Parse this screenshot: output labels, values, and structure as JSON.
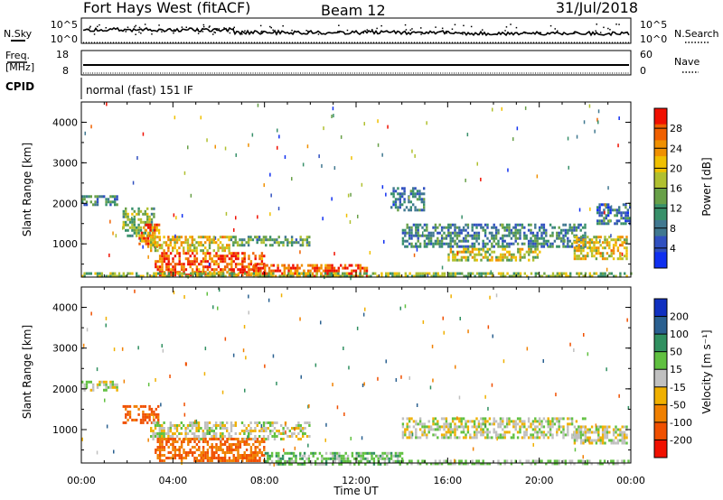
{
  "header": {
    "station": "Fort Hays West (fitACF)",
    "beam": "Beam 12",
    "date": "31/Jul/2018"
  },
  "noise_panel": {
    "left_label": "N.Sky",
    "right_label": "N.Search",
    "left_ticks": [
      "10^5",
      "10^0"
    ],
    "right_ticks": [
      "10^5",
      "10^0"
    ]
  },
  "freq_panel": {
    "left_label_line1": "Freq.",
    "left_label_line2": "[MHz]",
    "right_label": "Nave",
    "left_ticks": [
      "18",
      "8"
    ],
    "right_ticks": [
      "60",
      "0"
    ]
  },
  "cpid": {
    "label": "CPID",
    "mode_text": "normal (fast) 151 IF"
  },
  "chart_data": [
    {
      "type": "heatmap",
      "quantity": "power",
      "ylabel": "Slant Range [km]",
      "ylim": [
        180,
        4500
      ],
      "yticks": [
        1000,
        2000,
        3000,
        4000
      ],
      "xlim_hours": [
        0,
        24
      ],
      "colorbar": {
        "label": "Power [dB]",
        "range": [
          0,
          32
        ],
        "ticks": [
          4,
          8,
          12,
          16,
          20,
          24,
          28
        ],
        "colors": [
          "#1030f0",
          "#3050c0",
          "#407890",
          "#38906a",
          "#68a048",
          "#b0c030",
          "#f0c000",
          "#f09000",
          "#f06000",
          "#f01000"
        ]
      },
      "echo_regions": [
        {
          "t": [
            0.0,
            1.6
          ],
          "range": [
            1950,
            2200
          ],
          "level": 10
        },
        {
          "t": [
            1.8,
            3.2
          ],
          "range": [
            1200,
            1900
          ],
          "level": 14
        },
        {
          "t": [
            2.5,
            3.4
          ],
          "range": [
            900,
            1500
          ],
          "level": 26
        },
        {
          "t": [
            3.0,
            6.5
          ],
          "range": [
            800,
            1200
          ],
          "level": 20
        },
        {
          "t": [
            3.2,
            8.0
          ],
          "range": [
            250,
            800
          ],
          "level": 28
        },
        {
          "t": [
            6.5,
            10.0
          ],
          "range": [
            950,
            1200
          ],
          "level": 12
        },
        {
          "t": [
            7.5,
            12.5
          ],
          "range": [
            180,
            500
          ],
          "level": 28
        },
        {
          "t": [
            0.0,
            24.0
          ],
          "range": [
            180,
            300
          ],
          "level": 16
        },
        {
          "t": [
            13.5,
            15.0
          ],
          "range": [
            1800,
            2400
          ],
          "level": 8
        },
        {
          "t": [
            14.0,
            22.0
          ],
          "range": [
            900,
            1500
          ],
          "level": 10
        },
        {
          "t": [
            16.0,
            20.0
          ],
          "range": [
            600,
            900
          ],
          "level": 18
        },
        {
          "t": [
            21.5,
            23.8
          ],
          "range": [
            650,
            1200
          ],
          "level": 20
        },
        {
          "t": [
            22.5,
            24.0
          ],
          "range": [
            1500,
            2000
          ],
          "level": 8
        }
      ]
    },
    {
      "type": "heatmap",
      "quantity": "velocity",
      "ylabel": "Slant Range [km]",
      "xlabel": "Time UT",
      "ylim": [
        180,
        4500
      ],
      "yticks": [
        1000,
        2000,
        3000,
        4000
      ],
      "xlim_hours": [
        0,
        24
      ],
      "xticks": [
        "00:00",
        "04:00",
        "08:00",
        "12:00",
        "16:00",
        "20:00",
        "00:00"
      ],
      "colorbar": {
        "label": "Velocity [m s⁻¹]",
        "tick_labels": [
          "200",
          "100",
          "50",
          "15",
          "-15",
          "-50",
          "-100",
          "-200"
        ],
        "colors": [
          "#1030c0",
          "#2a6090",
          "#309060",
          "#60c040",
          "#c0c0c0",
          "#f0b000",
          "#f08000",
          "#f05000",
          "#f01000"
        ]
      },
      "echo_regions": [
        {
          "t": [
            0.0,
            1.6
          ],
          "range": [
            1950,
            2200
          ],
          "velocity": 0
        },
        {
          "t": [
            1.8,
            3.4
          ],
          "range": [
            1200,
            1600
          ],
          "velocity": -120
        },
        {
          "t": [
            3.0,
            10.0
          ],
          "range": [
            800,
            1200
          ],
          "velocity": 0
        },
        {
          "t": [
            3.2,
            8.0
          ],
          "range": [
            250,
            800
          ],
          "velocity": -100
        },
        {
          "t": [
            8.0,
            14.0
          ],
          "range": [
            180,
            450
          ],
          "velocity": 30
        },
        {
          "t": [
            14.0,
            24.0
          ],
          "range": [
            180,
            260
          ],
          "velocity": 20
        },
        {
          "t": [
            14.0,
            22.0
          ],
          "range": [
            800,
            1300
          ],
          "velocity": 0
        },
        {
          "t": [
            21.5,
            23.8
          ],
          "range": [
            650,
            1100
          ],
          "velocity": 0
        }
      ]
    }
  ]
}
